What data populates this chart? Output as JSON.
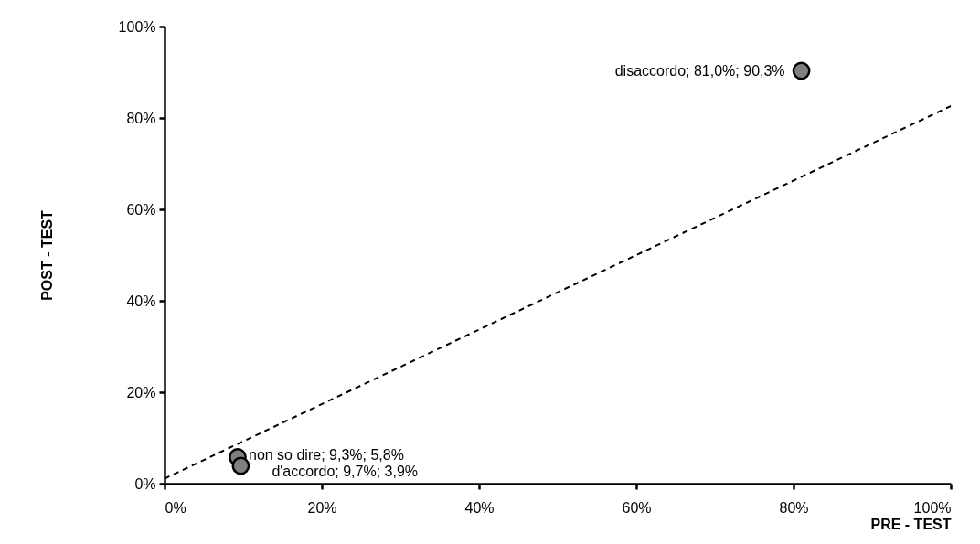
{
  "chart_data": {
    "type": "scatter",
    "xlabel": "PRE - TEST",
    "ylabel": "POST - TEST",
    "xlim": [
      0,
      100
    ],
    "ylim": [
      0,
      100
    ],
    "xticks": [
      {
        "value": 0,
        "label": "0%"
      },
      {
        "value": 20,
        "label": "20%"
      },
      {
        "value": 40,
        "label": "40%"
      },
      {
        "value": 60,
        "label": "60%"
      },
      {
        "value": 80,
        "label": "80%"
      },
      {
        "value": 100,
        "label": "100%"
      }
    ],
    "yticks": [
      {
        "value": 0,
        "label": "0%"
      },
      {
        "value": 20,
        "label": "20%"
      },
      {
        "value": 40,
        "label": "40%"
      },
      {
        "value": 60,
        "label": "60%"
      },
      {
        "value": 80,
        "label": "80%"
      },
      {
        "value": 100,
        "label": "100%"
      }
    ],
    "grid": false,
    "marker": "circle",
    "series": [
      {
        "color": "#808080",
        "x": [
          81.0,
          9.3,
          9.7
        ],
        "values": [
          90.3,
          5.8,
          3.9
        ]
      },
      {
        "type": "line",
        "color": "#000000",
        "line_style": "dashed",
        "marker": "none",
        "x": [
          0,
          100
        ],
        "values": [
          1.1,
          82.6
        ]
      }
    ],
    "annotations": [
      {
        "text": "disaccordo; 81,0%; 90,3%",
        "x": 81.0,
        "y": 90.3
      },
      {
        "text": "non so dire; 9,3%; 5,8%",
        "x": 9.3,
        "y": 5.8
      },
      {
        "text": "d'accordo; 9,7%; 3,9%",
        "x": 9.7,
        "y": 3.9
      }
    ]
  }
}
